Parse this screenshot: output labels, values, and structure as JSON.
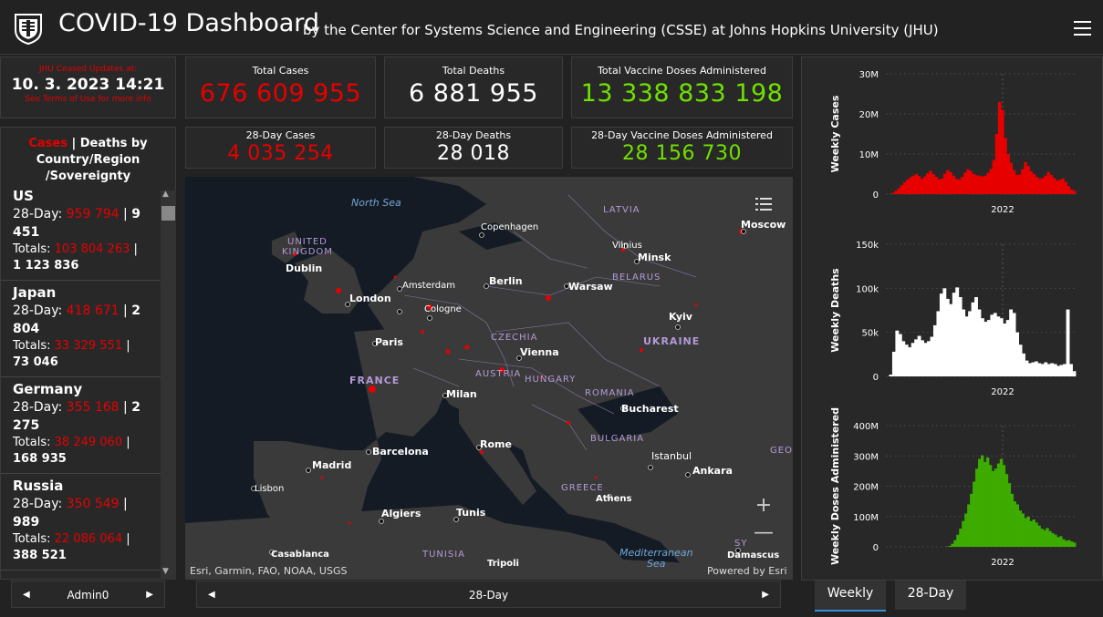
{
  "header": {
    "title": "COVID-19 Dashboard",
    "subtitle": "by the Center for Systems Science and Engineering (CSSE) at Johns Hopkins University (JHU)"
  },
  "updated": {
    "label": "JHU Ceased Updates at:",
    "date": "10. 3. 2023 14:21",
    "note": "See Terms of Use for more info"
  },
  "stats": {
    "total_cases": {
      "label": "Total Cases",
      "value": "676 609 955"
    },
    "total_deaths": {
      "label": "Total Deaths",
      "value": "6 881 955"
    },
    "total_vaccine": {
      "label": "Total Vaccine Doses Administered",
      "value": "13 338 833 198"
    },
    "day28_cases": {
      "label": "28-Day Cases",
      "value": "4 035 254"
    },
    "day28_deaths": {
      "label": "28-Day Deaths",
      "value": "28 018"
    },
    "day28_vaccine": {
      "label": "28-Day Vaccine Doses Administered",
      "value": "28 156 730"
    }
  },
  "list": {
    "header_cases": "Cases",
    "header_rest": " | Deaths by Country/Region /Sovereignty",
    "countries": [
      {
        "name": "US",
        "d28_label": "28-Day: ",
        "d28_cases": "959 794",
        "d28_deaths": "9 451",
        "tot_label": "Totals: ",
        "tot_cases": "103 804 263",
        "tot_deaths": "1 123 836"
      },
      {
        "name": "Japan",
        "d28_label": "28-Day: ",
        "d28_cases": "418 671",
        "d28_deaths": "2 804",
        "tot_label": "Totals: ",
        "tot_cases": "33 329 551",
        "tot_deaths": "73 046"
      },
      {
        "name": "Germany",
        "d28_label": "28-Day: ",
        "d28_cases": "355 168",
        "d28_deaths": "2 275",
        "tot_label": "Totals: ",
        "tot_cases": "38 249 060",
        "tot_deaths": "168 935"
      },
      {
        "name": "Russia",
        "d28_label": "28-Day: ",
        "d28_cases": "350 549",
        "d28_deaths": "989",
        "tot_label": "Totals: ",
        "tot_cases": "22 086 064",
        "tot_deaths": "388 521"
      }
    ]
  },
  "list_nav": {
    "label": "Admin0"
  },
  "map_nav": {
    "label": "28-Day"
  },
  "map": {
    "attribution_left": "Esri, Garmin, FAO, NOAA, USGS",
    "attribution_right": "Powered by Esri",
    "zoom_in": "+",
    "zoom_out": "—",
    "labels": {
      "north_sea": "North Sea",
      "united_kingdom_1": "UNITED",
      "united_kingdom_2": "KINGDOM",
      "dublin": "Dublin",
      "london": "London",
      "amsterdam": "Amsterdam",
      "cologne": "Cologne",
      "copenhagen": "Copenhagen",
      "berlin": "Berlin",
      "warsaw": "Warsaw",
      "latvia": "LATVIA",
      "vilnius": "Vilnius",
      "minsk": "Minsk",
      "belarus": "BELARUS",
      "moscow": "Moscow",
      "kyiv": "Kyiv",
      "ukraine": "UKRAINE",
      "paris": "Paris",
      "france": "FRANCE",
      "czechia": "CZECHIA",
      "vienna": "Vienna",
      "austria": "AUSTRIA",
      "hungary": "HUNGARY",
      "milan": "Milan",
      "romania": "ROMANIA",
      "bucharest": "Bucharest",
      "bulgaria": "BULGARIA",
      "barcelona": "Barcelona",
      "madrid": "Madrid",
      "lisbon": "Lisbon",
      "rome": "Rome",
      "istanbul": "Istanbul",
      "ankara": "Ankara",
      "greece": "GREECE",
      "athens": "Athens",
      "geo": "GEO",
      "algiers": "Algiers",
      "tunis": "Tunis",
      "tunisia": "TUNISIA",
      "tripoli": "Tripoli",
      "casablanca": "Casablanca",
      "mediterranean_1": "Mediterranean",
      "mediterranean_2": "Sea",
      "sy": "SY",
      "damascus": "Damascus"
    }
  },
  "tabs": {
    "weekly": "Weekly",
    "day28": "28-Day"
  },
  "colors": {
    "cases": "#e60000",
    "deaths": "#ffffff",
    "vaccines": "#3dab00",
    "accent_tab": "#3a8fd8"
  },
  "chart_data": [
    {
      "type": "area",
      "ylabel": "Weekly Cases",
      "yticks": [
        "0",
        "10M",
        "20M",
        "30M"
      ],
      "ylim": [
        0,
        30000000
      ],
      "xticks": [
        "2022"
      ],
      "series": [
        {
          "values": [
            0,
            0.05,
            0.3,
            0.8,
            1.5,
            2.2,
            3.0,
            3.6,
            4.2,
            4.6,
            5.0,
            4.5,
            3.8,
            4.4,
            5.2,
            5.8,
            5.0,
            4.3,
            3.7,
            3.9,
            5.1,
            6.0,
            5.5,
            4.6,
            3.8,
            3.6,
            4.3,
            5.4,
            6.2,
            5.8,
            5.0,
            4.7,
            4.6,
            4.4,
            4.6,
            5.3,
            6.3,
            8.5,
            15.0,
            23.0,
            21.0,
            14.0,
            10.0,
            7.8,
            6.0,
            4.8,
            4.9,
            6.2,
            8.0,
            7.0,
            5.7,
            5.0,
            4.3,
            3.8,
            4.0,
            4.6,
            5.5,
            4.8,
            4.0,
            3.4,
            3.6,
            3.9,
            3.0,
            2.0,
            1.2,
            0.8
          ]
        }
      ]
    },
    {
      "type": "area",
      "ylabel": "Weekly Deaths",
      "yticks": [
        "0",
        "50k",
        "100k",
        "150k"
      ],
      "ylim": [
        0,
        150000
      ],
      "xticks": [
        "2022"
      ],
      "series": [
        {
          "values": [
            0,
            2,
            28,
            52,
            48,
            40,
            36,
            33,
            38,
            42,
            46,
            41,
            38,
            40,
            45,
            58,
            74,
            94,
            100,
            88,
            82,
            95,
            101,
            90,
            76,
            68,
            74,
            84,
            90,
            76,
            66,
            62,
            64,
            70,
            72,
            68,
            66,
            60,
            64,
            76,
            72,
            50,
            36,
            26,
            18,
            15,
            16,
            17,
            15,
            14,
            16,
            14,
            15,
            14,
            12,
            13,
            14,
            76,
            14,
            6
          ]
        }
      ]
    },
    {
      "type": "area",
      "ylabel": "Weekly Doses Administered",
      "yticks": [
        "0",
        "100M",
        "200M",
        "300M",
        "400M"
      ],
      "ylim": [
        0,
        400000000
      ],
      "xticks": [
        "2022"
      ],
      "series": [
        {
          "values": [
            0,
            0,
            0,
            0,
            0,
            0,
            0,
            0,
            0,
            0,
            0,
            0,
            0,
            0,
            0,
            0,
            0,
            0,
            0,
            0,
            0,
            0,
            1,
            3,
            10,
            22,
            40,
            60,
            85,
            110,
            140,
            175,
            215,
            258,
            290,
            302,
            280,
            295,
            270,
            250,
            258,
            275,
            290,
            270,
            240,
            210,
            175,
            150,
            140,
            120,
            110,
            95,
            100,
            85,
            90,
            80,
            70,
            60,
            55,
            62,
            52,
            45,
            40,
            32,
            35,
            25,
            20,
            22,
            18,
            14
          ]
        }
      ]
    }
  ]
}
